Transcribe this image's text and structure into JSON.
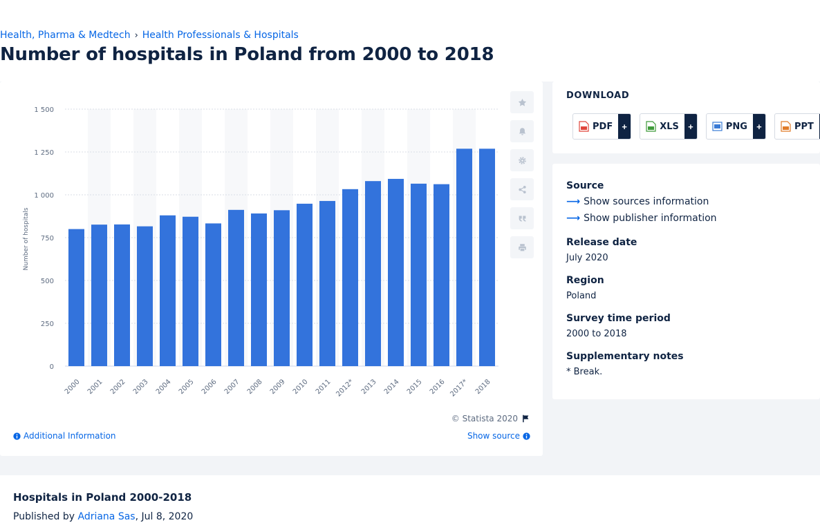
{
  "breadcrumb": {
    "items": [
      "Health, Pharma & Medtech",
      "Health Professionals & Hospitals"
    ],
    "separator": "›"
  },
  "page": {
    "title": "Number of hospitals in Poland from 2000 to 2018"
  },
  "chart_data": {
    "type": "bar",
    "categories": [
      "2000",
      "2001",
      "2002",
      "2003",
      "2004",
      "2005",
      "2006",
      "2007",
      "2008",
      "2009",
      "2010",
      "2011",
      "2012*",
      "2013",
      "2014",
      "2015",
      "2016",
      "2017*",
      "2018"
    ],
    "values": [
      800,
      826,
      827,
      816,
      880,
      872,
      833,
      912,
      891,
      910,
      948,
      964,
      1033,
      1080,
      1093,
      1065,
      1062,
      1269,
      1269
    ],
    "ylabel": "Number of hospitals",
    "xlabel": "",
    "ylim": [
      0,
      1500
    ],
    "yticks": [
      0,
      250,
      500,
      750,
      1000,
      1250,
      1500
    ],
    "ytick_labels": [
      "0",
      "250",
      "500",
      "750",
      "1 000",
      "1 250",
      "1 500"
    ],
    "bar_color": "#3373dc",
    "grid": true
  },
  "chart_footer": {
    "copyright": "© Statista 2020",
    "additional_info": "Additional Information",
    "show_source": "Show source"
  },
  "toolbar": {
    "icons": [
      "star-icon",
      "bell-icon",
      "gear-icon",
      "share-icon",
      "quote-icon",
      "print-icon"
    ]
  },
  "download": {
    "title": "DOWNLOAD",
    "buttons": [
      {
        "label": "PDF",
        "plus": "+",
        "color": "#e0463c"
      },
      {
        "label": "XLS",
        "plus": "+",
        "color": "#3f9b3a"
      },
      {
        "label": "PNG",
        "plus": "+",
        "color": "#3a7bd5"
      },
      {
        "label": "PPT",
        "plus": "+",
        "color": "#e07c2a"
      }
    ]
  },
  "info": {
    "source_label": "Source",
    "show_sources": "Show sources information",
    "show_publisher": "Show publisher information",
    "release_date_label": "Release date",
    "release_date": "July 2020",
    "region_label": "Region",
    "region": "Poland",
    "survey_label": "Survey time period",
    "survey": "2000 to 2018",
    "notes_label": "Supplementary notes",
    "notes": "* Break."
  },
  "publication": {
    "title": "Hospitals in Poland 2000-2018",
    "published_by": "Published by",
    "author": "Adriana Sas",
    "date": ", Jul 8, 2020"
  },
  "colors": {
    "accent": "#0666e5",
    "navy": "#0f2342",
    "bar": "#3373dc"
  }
}
